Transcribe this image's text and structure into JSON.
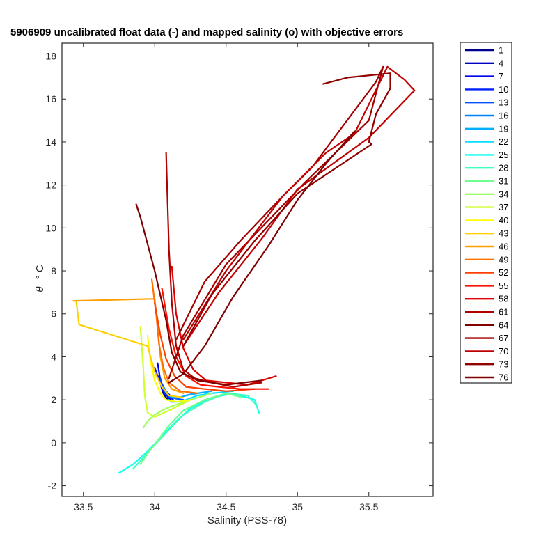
{
  "chart_data": {
    "type": "line",
    "title": "5906909 uncalibrated float data (-) and mapped salinity (o) with objective errors",
    "xlabel": "Salinity (PSS-78)",
    "ylabel_symbol": "θ",
    "ylabel_unit": "° C",
    "xlim": [
      33.35,
      35.95
    ],
    "ylim": [
      -2.5,
      18.6
    ],
    "xticks": [
      "33.5",
      "34",
      "34.5",
      "35",
      "35.5"
    ],
    "xtick_values": [
      33.5,
      34,
      34.5,
      35,
      35.5
    ],
    "yticks": [
      "-2",
      "0",
      "2",
      "4",
      "6",
      "8",
      "10",
      "12",
      "14",
      "16",
      "18"
    ],
    "ytick_values": [
      -2,
      0,
      2,
      4,
      6,
      8,
      10,
      12,
      14,
      16,
      18
    ],
    "grid": false,
    "legend_position": "outside-right",
    "colormap": "jet",
    "series": [
      {
        "name": "1",
        "color": "#00008f",
        "x": [
          34.03,
          34.04,
          34.05,
          34.06,
          34.08,
          34.1,
          34.12
        ],
        "y": [
          3.1,
          2.8,
          2.5,
          2.3,
          2.1,
          2.0,
          1.9
        ]
      },
      {
        "name": "4",
        "color": "#0000bf",
        "x": [
          34.01,
          34.03,
          34.05,
          34.07,
          34.09,
          34.11
        ],
        "y": [
          3.3,
          2.9,
          2.6,
          2.35,
          2.15,
          2.0
        ]
      },
      {
        "name": "7",
        "color": "#0000ef",
        "x": [
          34.02,
          34.03,
          34.04,
          34.06,
          34.08,
          34.1,
          34.12
        ],
        "y": [
          3.7,
          3.3,
          2.9,
          2.6,
          2.4,
          2.25,
          2.1
        ]
      },
      {
        "name": "10",
        "color": "#0020ff",
        "x": [
          34.0,
          34.02,
          34.04,
          34.05,
          34.07,
          34.1,
          34.13
        ],
        "y": [
          3.5,
          3.1,
          2.8,
          2.5,
          2.3,
          2.15,
          2.0
        ]
      },
      {
        "name": "13",
        "color": "#0050ff",
        "x": [
          34.04,
          34.05,
          34.07,
          34.09,
          34.12,
          34.15,
          34.2
        ],
        "y": [
          3.0,
          2.7,
          2.4,
          2.2,
          2.1,
          2.05,
          2.0
        ]
      },
      {
        "name": "16",
        "color": "#0080ff",
        "x": [
          34.06,
          34.08,
          34.1,
          34.13,
          34.17,
          34.22,
          34.28
        ],
        "y": [
          2.6,
          2.4,
          2.2,
          2.1,
          2.1,
          2.2,
          2.3
        ]
      },
      {
        "name": "19",
        "color": "#00afff",
        "x": [
          34.08,
          34.1,
          34.13,
          34.17,
          34.22,
          34.3,
          34.4
        ],
        "y": [
          2.4,
          2.2,
          2.1,
          2.1,
          2.2,
          2.3,
          2.4
        ]
      },
      {
        "name": "22",
        "color": "#00dfff",
        "x": [
          34.1,
          34.12,
          34.16,
          34.22,
          34.3,
          34.4,
          34.55
        ],
        "y": [
          2.0,
          1.9,
          1.9,
          2.0,
          2.2,
          2.3,
          2.4
        ]
      },
      {
        "name": "25",
        "color": "#10ffef",
        "x": [
          33.75,
          33.85,
          33.95,
          34.05,
          34.15,
          34.25,
          34.4,
          34.55,
          34.7,
          34.73
        ],
        "y": [
          -1.4,
          -1.0,
          -0.4,
          0.3,
          1.0,
          1.6,
          2.1,
          2.3,
          2.0,
          1.4
        ]
      },
      {
        "name": "28",
        "color": "#40ffbf",
        "x": [
          33.85,
          33.92,
          34.0,
          34.1,
          34.2,
          34.35,
          34.5,
          34.65,
          34.72
        ],
        "y": [
          -1.2,
          -0.7,
          -0.1,
          0.6,
          1.3,
          1.9,
          2.3,
          2.2,
          1.7
        ]
      },
      {
        "name": "31",
        "color": "#70ff8f",
        "x": [
          33.9,
          33.95,
          34.02,
          34.1,
          34.2,
          34.35,
          34.5,
          34.62
        ],
        "y": [
          -1.0,
          -0.5,
          0.1,
          0.8,
          1.5,
          2.0,
          2.3,
          2.1
        ]
      },
      {
        "name": "34",
        "color": "#9fff60",
        "x": [
          33.92,
          33.95,
          34.0,
          34.05,
          34.12,
          34.25,
          34.4
        ],
        "y": [
          0.7,
          1.0,
          1.3,
          1.5,
          1.7,
          2.0,
          2.3
        ]
      },
      {
        "name": "37",
        "color": "#cfff30",
        "x": [
          33.9,
          33.92,
          33.93,
          33.95,
          34.0,
          34.1,
          34.25
        ],
        "y": [
          5.4,
          3.5,
          2.2,
          1.4,
          1.2,
          1.5,
          2.0
        ]
      },
      {
        "name": "40",
        "color": "#ffff00",
        "x": [
          33.95,
          33.97,
          34.0,
          34.04,
          34.08,
          34.15,
          34.25
        ],
        "y": [
          5.0,
          3.8,
          2.9,
          2.3,
          2.0,
          1.9,
          2.0
        ]
      },
      {
        "name": "43",
        "color": "#ffcf00",
        "x": [
          33.45,
          33.47,
          33.95,
          34.0,
          34.05,
          34.1,
          34.2
        ],
        "y": [
          6.6,
          5.5,
          4.5,
          3.3,
          2.6,
          2.2,
          2.1
        ]
      },
      {
        "name": "46",
        "color": "#ff9f00",
        "x": [
          33.43,
          34.0,
          34.02,
          34.04,
          34.07,
          34.12,
          34.2
        ],
        "y": [
          6.6,
          6.7,
          5.4,
          4.0,
          3.0,
          2.5,
          2.3
        ]
      },
      {
        "name": "49",
        "color": "#ff7000",
        "x": [
          33.98,
          34.01,
          34.03,
          34.06,
          34.1,
          34.18,
          34.3
        ],
        "y": [
          7.6,
          6.0,
          4.6,
          3.5,
          2.8,
          2.4,
          2.3
        ]
      },
      {
        "name": "52",
        "color": "#ff4000",
        "x": [
          34.0,
          34.04,
          34.08,
          34.14,
          34.22,
          34.35,
          34.5,
          34.7
        ],
        "y": [
          6.5,
          5.0,
          3.9,
          3.1,
          2.6,
          2.5,
          2.4,
          2.5
        ]
      },
      {
        "name": "55",
        "color": "#ff1000",
        "x": [
          34.05,
          34.1,
          34.15,
          34.22,
          34.32,
          34.45,
          34.6,
          34.8
        ],
        "y": [
          7.2,
          5.3,
          4.0,
          3.1,
          2.7,
          2.6,
          2.5,
          2.5
        ]
      },
      {
        "name": "58",
        "color": "#df0000",
        "x": [
          34.12,
          34.15,
          34.2,
          34.27,
          34.36,
          34.5,
          34.65,
          34.85
        ],
        "y": [
          8.2,
          6.0,
          4.4,
          3.4,
          2.9,
          2.8,
          2.7,
          3.1
        ]
      },
      {
        "name": "61",
        "color": "#af0000",
        "x": [
          34.08,
          34.1,
          34.12,
          34.15,
          34.2,
          34.28,
          34.4,
          34.55,
          34.75
        ],
        "y": [
          13.5,
          9.0,
          6.5,
          4.5,
          3.4,
          3.0,
          2.8,
          2.6,
          2.8
        ]
      },
      {
        "name": "64",
        "color": "#800000",
        "x": [
          33.87,
          33.9,
          34.0,
          34.08,
          34.12,
          34.18,
          34.3,
          34.5,
          34.75
        ],
        "y": [
          11.1,
          10.5,
          8.0,
          5.7,
          4.2,
          3.3,
          2.9,
          2.7,
          2.9
        ]
      },
      {
        "name": "67",
        "color": "#a00000",
        "x": [
          34.15,
          34.35,
          34.6,
          34.9,
          35.1,
          35.55,
          35.6,
          35.5,
          35.05,
          34.5,
          34.2,
          34.1
        ],
        "y": [
          4.8,
          7.5,
          9.4,
          11.5,
          12.8,
          16.8,
          17.5,
          15.0,
          12.1,
          8.3,
          5.0,
          3.0
        ]
      },
      {
        "name": "70",
        "color": "#c00000",
        "x": [
          34.2,
          34.45,
          34.75,
          35.0,
          35.5,
          35.82,
          35.75,
          35.63,
          35.4,
          35.2,
          34.9,
          34.5,
          34.2
        ],
        "y": [
          4.5,
          7.0,
          9.5,
          11.8,
          14.2,
          16.4,
          16.9,
          17.5,
          14.4,
          13.5,
          11.5,
          8.0,
          4.8
        ]
      },
      {
        "name": "73",
        "color": "#900000",
        "x": [
          35.18,
          35.35,
          35.65,
          35.65,
          35.55,
          35.5,
          35.52,
          35.0,
          34.7,
          34.4,
          34.2
        ],
        "y": [
          16.7,
          17.0,
          17.2,
          16.5,
          15.3,
          14.0,
          13.9,
          11.6,
          9.4,
          6.9,
          4.5
        ]
      },
      {
        "name": "76",
        "color": "#800000",
        "x": [
          34.1,
          34.2,
          34.35,
          34.55,
          34.8,
          35.0,
          35.2,
          35.4
        ],
        "y": [
          2.8,
          3.2,
          4.5,
          6.8,
          9.2,
          11.3,
          13.0,
          14.5
        ]
      }
    ]
  }
}
